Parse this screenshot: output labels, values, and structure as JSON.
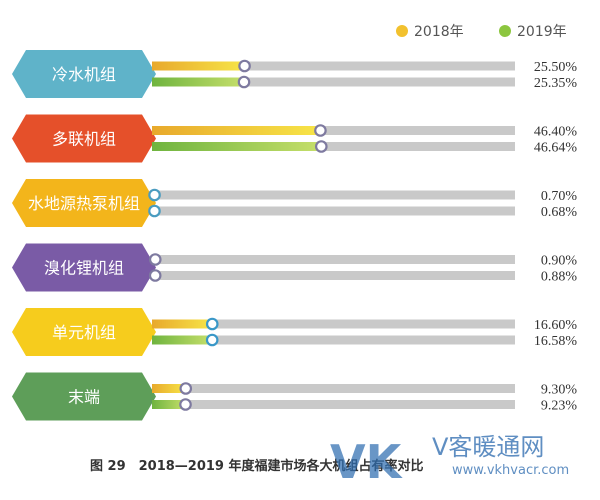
{
  "chart_data": {
    "type": "bar",
    "categories": [
      "冷水机组",
      "多联机组",
      "水地源热泵机组",
      "溴化锂机组",
      "单元机组",
      "末端"
    ],
    "series": [
      {
        "name": "2018年",
        "values": [
          25.5,
          46.4,
          0.7,
          0.9,
          16.6,
          9.3
        ],
        "labels": [
          "25.50%",
          "46.40%",
          "0.70%",
          "0.90%",
          "16.60%",
          "9.30%"
        ]
      },
      {
        "name": "2019年",
        "values": [
          25.35,
          46.64,
          0.68,
          0.88,
          16.58,
          9.23
        ],
        "labels": [
          "25.35%",
          "46.64%",
          "0.68%",
          "0.88%",
          "16.58%",
          "9.23%"
        ]
      }
    ],
    "ylim": [
      0,
      100
    ],
    "legend": "top-right",
    "title": "图 29　2018—2019 年度福建市场各大机组占有率对比",
    "category_colors": [
      "#5fb3c9",
      "#e5502a",
      "#f3b51b",
      "#7a5ba6",
      "#f6cc1d",
      "#5e9e59"
    ],
    "series_colors": {
      "2018年": {
        "from": "#e8a92c",
        "to": "#f7e548"
      },
      "2019年": {
        "from": "#6fb43f",
        "to": "#c6df6b"
      }
    }
  },
  "watermark": {
    "logo_text": "VK",
    "brand_cn": "V客暖通网",
    "url": "www.vkhvacr.com"
  }
}
